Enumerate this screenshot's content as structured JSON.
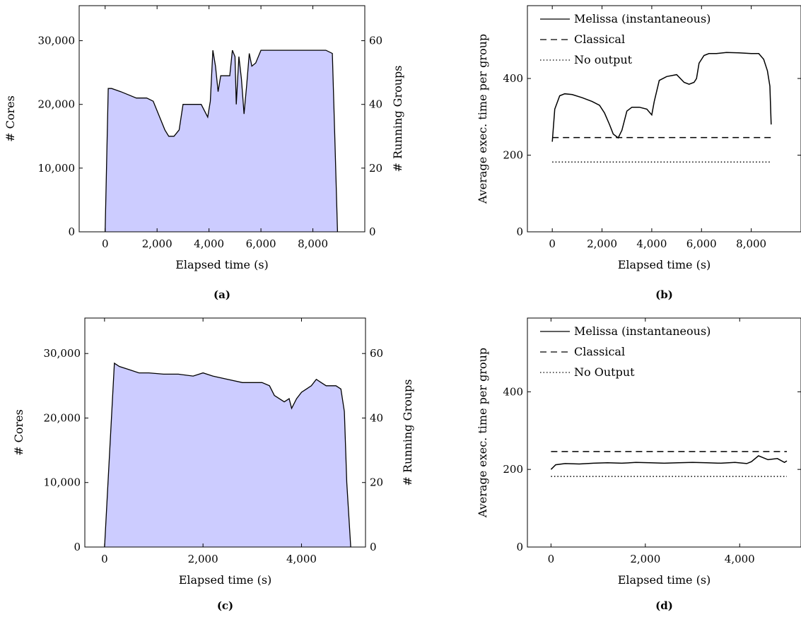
{
  "chart_data": [
    {
      "id": "a",
      "caption": "(a)",
      "type": "area",
      "xlabel": "Elapsed time (s)",
      "ylabel": "# Cores",
      "y2label": "# Running Groups",
      "xlim": [
        -1000,
        10000
      ],
      "ylim": [
        0,
        35500
      ],
      "y2lim": [
        0,
        71
      ],
      "xticks": [
        0,
        2000,
        4000,
        6000,
        8000
      ],
      "xtick_labels": [
        "0",
        "2,000",
        "4,000",
        "6,000",
        "8,000"
      ],
      "yticks": [
        0,
        10000,
        20000,
        30000
      ],
      "ytick_labels": [
        "0",
        "10,000",
        "20,000",
        "30,000"
      ],
      "y2ticks": [
        0,
        20,
        40,
        60
      ],
      "y2tick_labels": [
        "0",
        "20",
        "40",
        "60"
      ],
      "fill_color": "#ccccff",
      "series": [
        {
          "x": [
            0,
            120,
            250,
            600,
            900,
            1200,
            1600,
            1850,
            2000,
            2150,
            2300,
            2450,
            2650,
            2850,
            3000,
            3300,
            3700,
            3950,
            4050,
            4150,
            4250,
            4350,
            4450,
            4600,
            4800,
            4900,
            5000,
            5050,
            5150,
            5250,
            5350,
            5450,
            5550,
            5650,
            5800,
            6000,
            6500,
            7000,
            7500,
            8000,
            8500,
            8750,
            8850,
            8950
          ],
          "y": [
            0,
            22500,
            22500,
            22000,
            21500,
            21000,
            21000,
            20500,
            19000,
            17500,
            16000,
            15000,
            15000,
            16000,
            20000,
            20000,
            20000,
            18000,
            20500,
            28500,
            26000,
            22000,
            24500,
            24500,
            24500,
            28500,
            27500,
            20000,
            27500,
            24000,
            18500,
            23000,
            28000,
            26000,
            26500,
            28500,
            28500,
            28500,
            28500,
            28500,
            28500,
            28000,
            14000,
            0
          ]
        }
      ]
    },
    {
      "id": "b",
      "caption": "(b)",
      "type": "line",
      "xlabel": "Elapsed time (s)",
      "ylabel": "Average exec. time per group",
      "xlim": [
        -1000,
        10000
      ],
      "ylim": [
        0,
        590
      ],
      "xticks": [
        0,
        2000,
        4000,
        6000,
        8000
      ],
      "xtick_labels": [
        "0",
        "2,000",
        "4,000",
        "6,000",
        "8,000"
      ],
      "yticks": [
        0,
        200,
        400
      ],
      "ytick_labels": [
        "0",
        "200",
        "400"
      ],
      "legend": [
        "Melissa (instantaneous)",
        "Classical",
        "No output"
      ],
      "legend_position": "top-left",
      "series": [
        {
          "name": "Melissa (instantaneous)",
          "style": "solid",
          "x": [
            0,
            100,
            300,
            500,
            800,
            1200,
            1600,
            1900,
            2100,
            2300,
            2450,
            2550,
            2650,
            2800,
            3000,
            3200,
            3500,
            3800,
            4000,
            4100,
            4300,
            4600,
            5000,
            5300,
            5500,
            5700,
            5800,
            5900,
            6100,
            6300,
            6600,
            7000,
            7500,
            8000,
            8300,
            8500,
            8650,
            8750,
            8800
          ],
          "y": [
            235,
            320,
            355,
            360,
            358,
            350,
            340,
            330,
            310,
            280,
            255,
            250,
            245,
            265,
            315,
            325,
            325,
            320,
            305,
            340,
            395,
            405,
            410,
            390,
            385,
            390,
            400,
            440,
            460,
            465,
            465,
            468,
            467,
            465,
            465,
            450,
            420,
            380,
            280
          ]
        },
        {
          "name": "Classical",
          "style": "dashed",
          "x": [
            0,
            8800
          ],
          "y": [
            246,
            246
          ]
        },
        {
          "name": "No output",
          "style": "dotted",
          "x": [
            0,
            8800
          ],
          "y": [
            182,
            182
          ]
        }
      ]
    },
    {
      "id": "c",
      "caption": "(c)",
      "type": "area",
      "xlabel": "Elapsed time (s)",
      "ylabel": "# Cores",
      "y2label": "# Running Groups",
      "xlim": [
        -400,
        5300
      ],
      "ylim": [
        0,
        35500
      ],
      "y2lim": [
        0,
        71
      ],
      "xticks": [
        0,
        2000,
        4000
      ],
      "xtick_labels": [
        "0",
        "2,000",
        "4,000"
      ],
      "yticks": [
        0,
        10000,
        20000,
        30000
      ],
      "ytick_labels": [
        "0",
        "10,000",
        "20,000",
        "30,000"
      ],
      "y2ticks": [
        0,
        20,
        40,
        60
      ],
      "y2tick_labels": [
        "0",
        "20",
        "40",
        "60"
      ],
      "fill_color": "#ccccff",
      "series": [
        {
          "x": [
            0,
            200,
            300,
            500,
            700,
            900,
            1200,
            1500,
            1800,
            2000,
            2200,
            2500,
            2800,
            3000,
            3200,
            3350,
            3450,
            3550,
            3650,
            3750,
            3800,
            3900,
            4000,
            4100,
            4200,
            4300,
            4400,
            4500,
            4600,
            4700,
            4800,
            4870,
            4920,
            5000
          ],
          "y": [
            0,
            28500,
            28000,
            27500,
            27000,
            27000,
            26800,
            26800,
            26500,
            27000,
            26500,
            26000,
            25500,
            25500,
            25500,
            25000,
            23500,
            23000,
            22500,
            23000,
            21500,
            23000,
            24000,
            24500,
            25000,
            26000,
            25500,
            25000,
            25000,
            25000,
            24500,
            21000,
            10000,
            0
          ]
        }
      ]
    },
    {
      "id": "d",
      "caption": "(d)",
      "type": "line",
      "xlabel": "Elapsed time (s)",
      "ylabel": "Average exec. time per group",
      "xlim": [
        -500,
        5300
      ],
      "ylim": [
        0,
        590
      ],
      "xticks": [
        0,
        2000,
        4000
      ],
      "xtick_labels": [
        "0",
        "2,000",
        "4,000"
      ],
      "yticks": [
        0,
        200,
        400
      ],
      "ytick_labels": [
        "0",
        "200",
        "400"
      ],
      "legend": [
        "Melissa (instantaneous)",
        "Classical",
        "No Output"
      ],
      "legend_position": "top-left",
      "series": [
        {
          "name": "Melissa (instantaneous)",
          "style": "solid",
          "x": [
            0,
            100,
            300,
            600,
            900,
            1200,
            1500,
            1800,
            2100,
            2400,
            2700,
            3000,
            3300,
            3600,
            3900,
            4150,
            4250,
            4400,
            4600,
            4800,
            4950,
            5000
          ],
          "y": [
            200,
            212,
            215,
            214,
            216,
            217,
            216,
            218,
            217,
            216,
            217,
            218,
            217,
            216,
            218,
            215,
            220,
            235,
            225,
            228,
            218,
            222
          ]
        },
        {
          "name": "Classical",
          "style": "dashed",
          "x": [
            0,
            5000
          ],
          "y": [
            246,
            246
          ]
        },
        {
          "name": "No Output",
          "style": "dotted",
          "x": [
            0,
            5000
          ],
          "y": [
            182,
            182
          ]
        }
      ]
    }
  ]
}
